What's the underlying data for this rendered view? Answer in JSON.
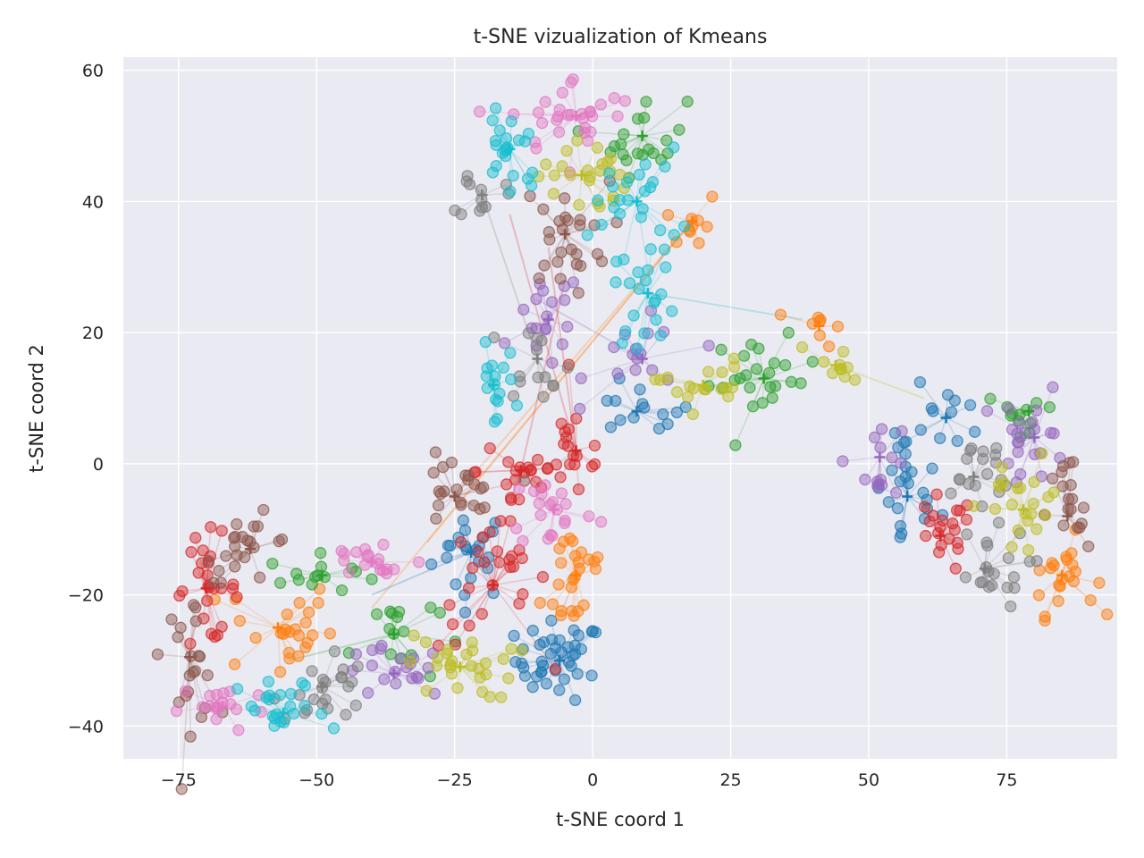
{
  "chart_data": {
    "type": "scatter",
    "title": "t-SNE vizualization of Kmeans",
    "xlabel": "t-SNE coord 1",
    "ylabel": "t-SNE coord 2",
    "xlim": [
      -85,
      95
    ],
    "ylim": [
      -45,
      62
    ],
    "x_ticks": [
      -75,
      -50,
      -25,
      0,
      25,
      50,
      75
    ],
    "x_tick_labels": [
      "−75",
      "−50",
      "−25",
      "0",
      "25",
      "50",
      "75"
    ],
    "y_ticks": [
      -40,
      -20,
      0,
      20,
      40,
      60
    ],
    "y_tick_labels": [
      "−40",
      "−20",
      "0",
      "20",
      "40",
      "60"
    ],
    "grid": true,
    "background": "#EAEAF2",
    "palette": [
      "#1f77b4",
      "#ff7f0e",
      "#2ca02c",
      "#d62728",
      "#9467bd",
      "#8c564b",
      "#e377c2",
      "#7f7f7f",
      "#bcbd22",
      "#17becf"
    ],
    "clusters": [
      {
        "center": [
          -22,
          -13.5
        ],
        "color": 0,
        "spread": [
          3.5,
          3.5
        ],
        "n": 22
      },
      {
        "center": [
          -6,
          -30
        ],
        "color": 0,
        "spread": [
          4,
          3
        ],
        "n": 40
      },
      {
        "center": [
          8,
          8
        ],
        "color": 0,
        "spread": [
          5,
          2
        ],
        "n": 14
      },
      {
        "center": [
          57,
          -5
        ],
        "color": 0,
        "spread": [
          3,
          5
        ],
        "n": 22
      },
      {
        "center": [
          64,
          7
        ],
        "color": 0,
        "spread": [
          4,
          2.5
        ],
        "n": 12
      },
      {
        "center": [
          -57,
          -25
        ],
        "color": 1,
        "spread": [
          5,
          4
        ],
        "n": 25
      },
      {
        "center": [
          -3,
          -17
        ],
        "color": 1,
        "spread": [
          3,
          5
        ],
        "n": 25
      },
      {
        "center": [
          18,
          37
        ],
        "color": 1,
        "spread": [
          2.5,
          2.5
        ],
        "n": 10
      },
      {
        "center": [
          41,
          21
        ],
        "color": 1,
        "spread": [
          2,
          1.5
        ],
        "n": 8
      },
      {
        "center": [
          85,
          -17
        ],
        "color": 1,
        "spread": [
          3,
          3
        ],
        "n": 22
      },
      {
        "center": [
          -49,
          -17
        ],
        "color": 2,
        "spread": [
          5,
          1.5
        ],
        "n": 14
      },
      {
        "center": [
          -36,
          -26
        ],
        "color": 2,
        "spread": [
          4,
          4
        ],
        "n": 16
      },
      {
        "center": [
          9,
          50
        ],
        "color": 2,
        "spread": [
          4,
          3
        ],
        "n": 20
      },
      {
        "center": [
          31,
          13
        ],
        "color": 2,
        "spread": [
          5,
          3
        ],
        "n": 24
      },
      {
        "center": [
          79,
          8
        ],
        "color": 2,
        "spread": [
          4,
          1.5
        ],
        "n": 12
      },
      {
        "center": [
          -70,
          -19
        ],
        "color": 3,
        "spread": [
          3,
          4
        ],
        "n": 26
      },
      {
        "center": [
          -18,
          -18.5
        ],
        "color": 3,
        "spread": [
          5,
          5
        ],
        "n": 28
      },
      {
        "center": [
          -13,
          -1
        ],
        "color": 3,
        "spread": [
          4,
          4
        ],
        "n": 20
      },
      {
        "center": [
          -3,
          2
        ],
        "color": 3,
        "spread": [
          3,
          4
        ],
        "n": 18
      },
      {
        "center": [
          63,
          -11
        ],
        "color": 3,
        "spread": [
          3,
          3
        ],
        "n": 20
      },
      {
        "center": [
          -36,
          -32
        ],
        "color": 4,
        "spread": [
          5,
          2
        ],
        "n": 20
      },
      {
        "center": [
          -8,
          22
        ],
        "color": 4,
        "spread": [
          3,
          4
        ],
        "n": 18
      },
      {
        "center": [
          9,
          16
        ],
        "color": 4,
        "spread": [
          5,
          3
        ],
        "n": 16
      },
      {
        "center": [
          80,
          4
        ],
        "color": 4,
        "spread": [
          3,
          4
        ],
        "n": 22
      },
      {
        "center": [
          52,
          1
        ],
        "color": 4,
        "spread": [
          3,
          3
        ],
        "n": 14
      },
      {
        "center": [
          -62,
          -13
        ],
        "color": 5,
        "spread": [
          4,
          2.5
        ],
        "n": 22
      },
      {
        "center": [
          -73,
          -29.5
        ],
        "color": 5,
        "spread": [
          2.5,
          5
        ],
        "n": 22
      },
      {
        "center": [
          -25,
          -5
        ],
        "color": 5,
        "spread": [
          4,
          3
        ],
        "n": 22
      },
      {
        "center": [
          -5,
          35
        ],
        "color": 5,
        "spread": [
          4,
          4
        ],
        "n": 26
      },
      {
        "center": [
          86,
          -8
        ],
        "color": 5,
        "spread": [
          2,
          5
        ],
        "n": 18
      },
      {
        "center": [
          -67,
          -37
        ],
        "color": 6,
        "spread": [
          4,
          2
        ],
        "n": 18
      },
      {
        "center": [
          -40,
          -15
        ],
        "color": 6,
        "spread": [
          5,
          2
        ],
        "n": 18
      },
      {
        "center": [
          -7,
          -7
        ],
        "color": 6,
        "spread": [
          4,
          3
        ],
        "n": 20
      },
      {
        "center": [
          -3,
          53
        ],
        "color": 6,
        "spread": [
          6,
          3
        ],
        "n": 30
      },
      {
        "center": [
          -49,
          -34
        ],
        "color": 7,
        "spread": [
          4,
          3
        ],
        "n": 22
      },
      {
        "center": [
          -20,
          41
        ],
        "color": 7,
        "spread": [
          2,
          2
        ],
        "n": 12
      },
      {
        "center": [
          -10,
          16
        ],
        "color": 7,
        "spread": [
          3,
          3
        ],
        "n": 14
      },
      {
        "center": [
          69,
          -2
        ],
        "color": 7,
        "spread": [
          4,
          4
        ],
        "n": 18
      },
      {
        "center": [
          71,
          -16
        ],
        "color": 7,
        "spread": [
          4,
          3
        ],
        "n": 20
      },
      {
        "center": [
          -24,
          -31
        ],
        "color": 8,
        "spread": [
          5,
          2.5
        ],
        "n": 28
      },
      {
        "center": [
          -2,
          44
        ],
        "color": 8,
        "spread": [
          4,
          3
        ],
        "n": 24
      },
      {
        "center": [
          20,
          12
        ],
        "color": 8,
        "spread": [
          4,
          2
        ],
        "n": 18
      },
      {
        "center": [
          44,
          15
        ],
        "color": 8,
        "spread": [
          3,
          2
        ],
        "n": 10
      },
      {
        "center": [
          78,
          -7
        ],
        "color": 8,
        "spread": [
          4,
          4
        ],
        "n": 22
      },
      {
        "center": [
          -56,
          -38
        ],
        "color": 9,
        "spread": [
          4,
          2.5
        ],
        "n": 22
      },
      {
        "center": [
          -15,
          48
        ],
        "color": 9,
        "spread": [
          3,
          4
        ],
        "n": 22
      },
      {
        "center": [
          8,
          40
        ],
        "color": 9,
        "spread": [
          4,
          4
        ],
        "n": 24
      },
      {
        "center": [
          10,
          26
        ],
        "color": 9,
        "spread": [
          3,
          4
        ],
        "n": 20
      },
      {
        "center": [
          -18,
          12
        ],
        "color": 9,
        "spread": [
          2,
          3
        ],
        "n": 16
      }
    ],
    "long_links": [
      {
        "from": [
          18,
          37
        ],
        "to": [
          -25,
          -5
        ],
        "color": 1
      },
      {
        "from": [
          18,
          37
        ],
        "to": [
          -40,
          -22
        ],
        "color": 1
      },
      {
        "from": [
          18,
          37
        ],
        "to": [
          -30,
          -12
        ],
        "color": 1
      },
      {
        "from": [
          10,
          26
        ],
        "to": [
          38,
          22
        ],
        "color": 9
      },
      {
        "from": [
          -20,
          41
        ],
        "to": [
          -10,
          16
        ],
        "color": 7
      },
      {
        "from": [
          -3,
          2
        ],
        "to": [
          -15,
          38
        ],
        "color": 3
      },
      {
        "from": [
          -3,
          2
        ],
        "to": [
          -8,
          33
        ],
        "color": 3
      },
      {
        "from": [
          -13,
          -1
        ],
        "to": [
          -5,
          28
        ],
        "color": 3
      },
      {
        "from": [
          9,
          16
        ],
        "to": [
          -10,
          25
        ],
        "color": 4
      },
      {
        "from": [
          44,
          15
        ],
        "to": [
          60,
          10
        ],
        "color": 8
      },
      {
        "from": [
          -36,
          -26
        ],
        "to": [
          -55,
          -30
        ],
        "color": 2
      },
      {
        "from": [
          -22,
          -13.5
        ],
        "to": [
          -40,
          -20
        ],
        "color": 0
      }
    ]
  }
}
